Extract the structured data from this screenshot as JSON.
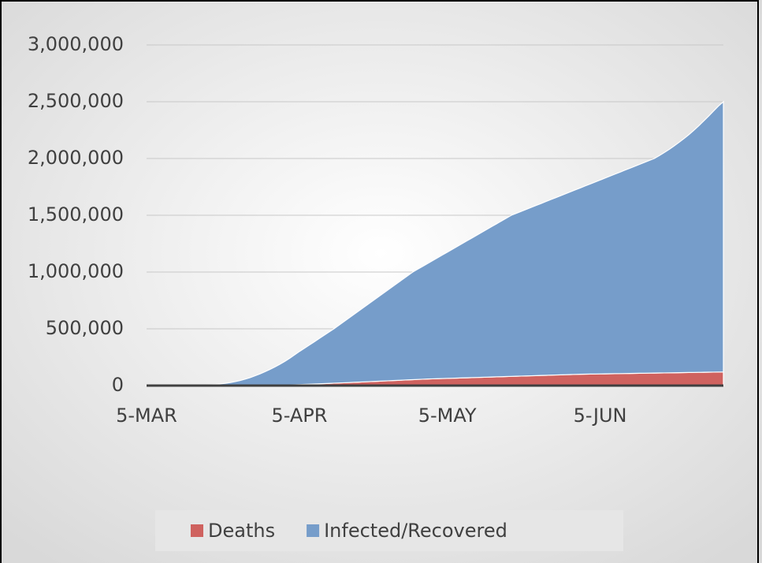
{
  "chart_data": {
    "type": "stacked_area",
    "categories": [
      "5-MAR",
      null,
      null,
      null,
      null,
      null,
      null,
      null,
      null,
      null,
      null,
      null,
      null,
      null,
      null,
      null,
      null,
      null,
      null,
      null,
      null,
      null,
      null,
      null,
      null,
      null,
      null,
      null,
      null,
      null,
      null,
      "5-APR",
      null,
      null,
      null,
      null,
      null,
      null,
      null,
      null,
      null,
      null,
      null,
      null,
      null,
      null,
      null,
      null,
      null,
      null,
      null,
      null,
      null,
      null,
      null,
      null,
      null,
      null,
      null,
      null,
      null,
      "5-MAY",
      null,
      null,
      null,
      null,
      null,
      null,
      null,
      null,
      null,
      null,
      null,
      null,
      null,
      null,
      null,
      null,
      null,
      null,
      null,
      null,
      null,
      null,
      null,
      null,
      null,
      null,
      null,
      null,
      null,
      null,
      "5-JUN",
      null,
      null,
      null,
      null,
      null,
      null,
      null,
      null,
      null,
      null,
      null,
      null,
      null,
      null,
      null,
      null,
      null,
      null,
      null,
      null,
      null,
      null,
      null,
      null,
      null
    ],
    "series": [
      {
        "name": "Deaths",
        "color": "#cf625f",
        "values": [
          10,
          11,
          12,
          15,
          19,
          22,
          26,
          30,
          38,
          45,
          57,
          70,
          90,
          110,
          150,
          200,
          260,
          340,
          450,
          600,
          780,
          1000,
          1300,
          1700,
          2200,
          2800,
          3500,
          4300,
          5200,
          6200,
          7300,
          8500,
          10300,
          12100,
          13900,
          15700,
          17500,
          19300,
          21100,
          22900,
          24700,
          26500,
          28500,
          30400,
          32400,
          34400,
          36300,
          38300,
          40300,
          42200,
          44200,
          46200,
          48100,
          50100,
          52100,
          54100,
          56000,
          58000,
          59400,
          60700,
          62100,
          63400,
          64800,
          66100,
          67500,
          68800,
          70200,
          71600,
          72900,
          74300,
          75600,
          77000,
          78300,
          79700,
          81000,
          82400,
          83800,
          85100,
          86500,
          87800,
          89200,
          90500,
          91900,
          93200,
          94600,
          95900,
          97300,
          98600,
          100000,
          100700,
          101400,
          102100,
          102800,
          103400,
          104100,
          104800,
          105500,
          106200,
          106900,
          107600,
          108300,
          109000,
          109700,
          110300,
          111000,
          111700,
          112400,
          113100,
          113800,
          114500,
          115200,
          115900,
          116600,
          117200,
          117900,
          118600,
          119300,
          120000
        ]
      },
      {
        "name": "Infected/Recovered",
        "color": "#769dca",
        "values": [
          190,
          239,
          338,
          435,
          531,
          678,
          924,
          1270,
          1662,
          2155,
          2943,
          4430,
          5910,
          7890,
          10850,
          14800,
          19740,
          26660,
          34550,
          44400,
          56220,
          69000,
          84700,
          101300,
          119800,
          139200,
          159500,
          182700,
          206800,
          233800,
          262700,
          291500,
          317700,
          344900,
          371100,
          398300,
          425500,
          451700,
          478900,
          508100,
          537300,
          567500,
          596500,
          625600,
          654600,
          684600,
          713700,
          742700,
          771700,
          801800,
          830800,
          859800,
          888900,
          918900,
          947900,
          970900,
          994000,
          1017000,
          1040600,
          1064300,
          1087900,
          1111600,
          1135200,
          1158900,
          1182500,
          1206200,
          1229800,
          1253400,
          1277100,
          1300700,
          1324400,
          1348000,
          1371700,
          1395300,
          1419000,
          1434600,
          1450200,
          1466900,
          1482500,
          1498200,
          1513800,
          1530500,
          1546100,
          1561800,
          1577400,
          1594100,
          1609700,
          1625400,
          1641000,
          1658300,
          1674600,
          1690900,
          1707200,
          1724600,
          1740900,
          1757200,
          1773500,
          1790800,
          1807100,
          1823400,
          1839700,
          1857000,
          1873300,
          1889700,
          1914000,
          1940300,
          1967600,
          1996900,
          2028200,
          2060500,
          2094800,
          2132100,
          2171400,
          2212800,
          2255100,
          2299400,
          2342700,
          2380000
        ]
      }
    ],
    "ylim": [
      0,
      3000000
    ],
    "yticks": [
      0,
      {
        "value": 500000,
        "label": "500,000"
      },
      {
        "value": 1000000,
        "label": "1,000,000"
      },
      {
        "value": 1500000,
        "label": "1,500,000"
      },
      {
        "value": 2000000,
        "label": "2,000,000"
      },
      {
        "value": 2500000,
        "label": "2,500,000"
      },
      {
        "value": 3000000,
        "label": "3,000,000"
      }
    ],
    "grid": true,
    "legend": "bottom"
  }
}
